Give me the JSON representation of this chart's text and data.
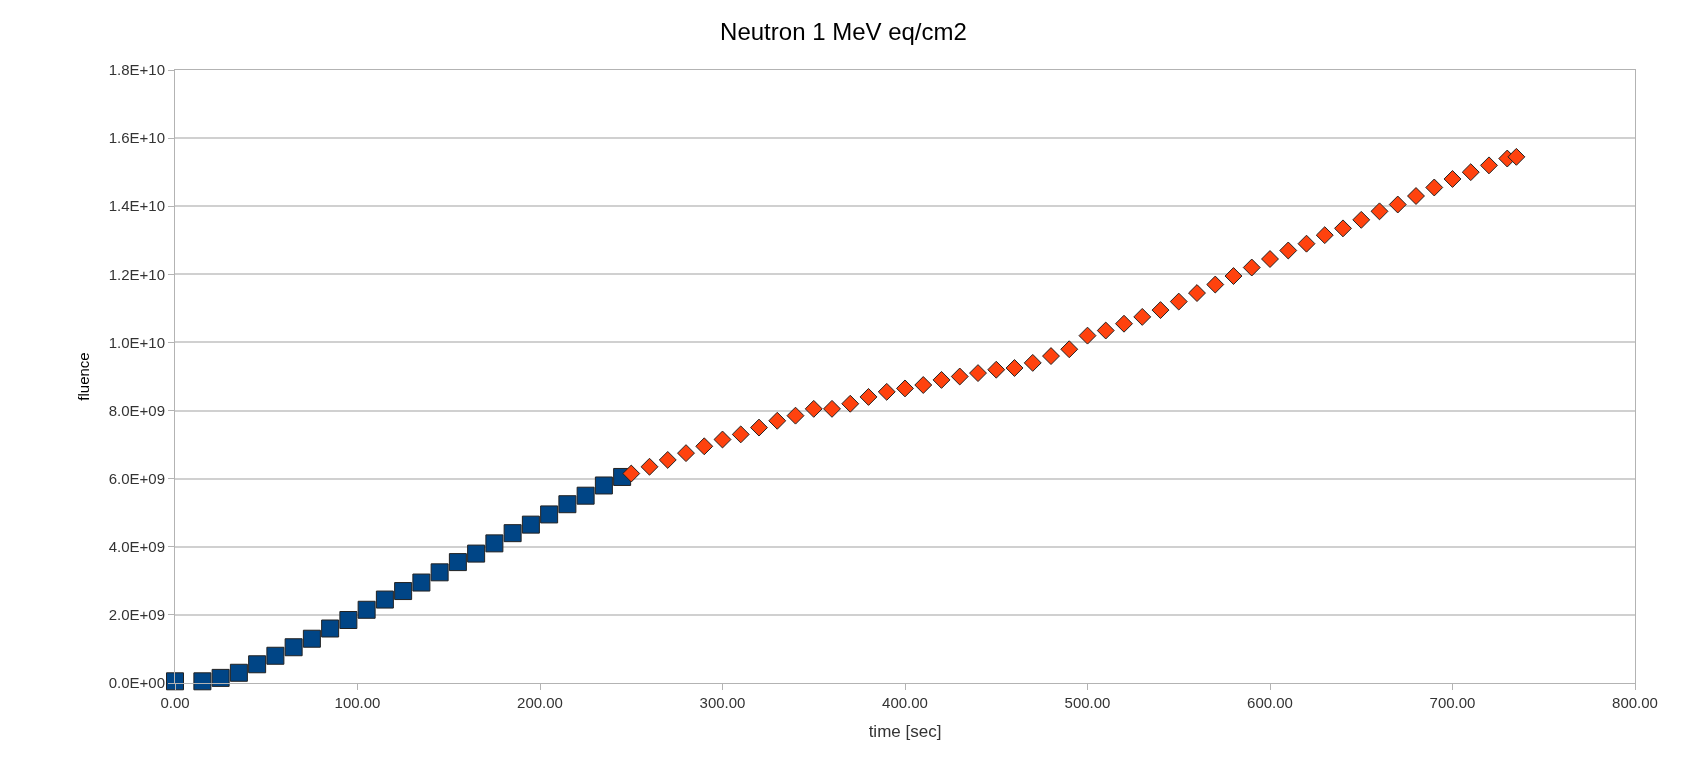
{
  "chart_data": {
    "type": "scatter",
    "title": "Neutron 1 MeV eq/cm2",
    "xlabel": "time [sec]",
    "ylabel": "fluence",
    "xlim": [
      0,
      800
    ],
    "xticks": [
      {
        "value": 0,
        "label": "0.00"
      },
      {
        "value": 100,
        "label": "100.00"
      },
      {
        "value": 200,
        "label": "200.00"
      },
      {
        "value": 300,
        "label": "300.00"
      },
      {
        "value": 400,
        "label": "400.00"
      },
      {
        "value": 500,
        "label": "500.00"
      },
      {
        "value": 600,
        "label": "600.00"
      },
      {
        "value": 700,
        "label": "700.00"
      },
      {
        "value": 800,
        "label": "800.00"
      }
    ],
    "ylim": [
      0,
      18000000000
    ],
    "yticks": [
      {
        "value": 0,
        "label": "0.0E+00"
      },
      {
        "value": 2000000000,
        "label": "2.0E+09"
      },
      {
        "value": 4000000000,
        "label": "4.0E+09"
      },
      {
        "value": 6000000000,
        "label": "6.0E+09"
      },
      {
        "value": 8000000000,
        "label": "8.0E+09"
      },
      {
        "value": 10000000000,
        "label": "1.0E+10"
      },
      {
        "value": 12000000000,
        "label": "1.2E+10"
      },
      {
        "value": 14000000000,
        "label": "1.4E+10"
      },
      {
        "value": 16000000000,
        "label": "1.6E+10"
      },
      {
        "value": 18000000000,
        "label": "1.8E+10"
      }
    ],
    "grid": "y",
    "series": [
      {
        "color": "#004586",
        "marker": "square",
        "x": [
          0,
          15,
          25,
          35,
          45,
          55,
          65,
          75,
          85,
          95,
          105,
          115,
          125,
          135,
          145,
          155,
          165,
          175,
          185,
          195,
          205,
          215,
          225,
          235,
          245
        ],
        "values": [
          50000000,
          50000000,
          150000000,
          300000000,
          550000000,
          800000000,
          1050000000,
          1300000000,
          1600000000,
          1850000000,
          2150000000,
          2450000000,
          2700000000,
          2950000000,
          3250000000,
          3550000000,
          3800000000,
          4100000000,
          4400000000,
          4650000000,
          4950000000,
          5250000000,
          5500000000,
          5800000000,
          6050000000
        ]
      },
      {
        "color": "#ff420e",
        "marker": "diamond",
        "x": [
          250,
          260,
          270,
          280,
          290,
          300,
          310,
          320,
          330,
          340,
          350,
          360,
          370,
          380,
          390,
          400,
          410,
          420,
          430,
          440,
          450,
          460,
          470,
          480,
          490,
          500,
          510,
          520,
          530,
          540,
          550,
          560,
          570,
          580,
          590,
          600,
          610,
          620,
          630,
          640,
          650,
          660,
          670,
          680,
          690,
          700,
          710,
          720,
          730,
          735
        ],
        "values": [
          6150000000,
          6350000000,
          6550000000,
          6750000000,
          6950000000,
          7150000000,
          7300000000,
          7500000000,
          7700000000,
          7850000000,
          8050000000,
          8050000000,
          8200000000,
          8400000000,
          8550000000,
          8650000000,
          8750000000,
          8900000000,
          9000000000,
          9100000000,
          9200000000,
          9250000000,
          9400000000,
          9600000000,
          9800000000,
          10200000000,
          10350000000,
          10550000000,
          10750000000,
          10950000000,
          11200000000,
          11450000000,
          11700000000,
          11950000000,
          12200000000,
          12450000000,
          12700000000,
          12900000000,
          13150000000,
          13350000000,
          13600000000,
          13850000000,
          14050000000,
          14300000000,
          14550000000,
          14800000000,
          15000000000,
          15200000000,
          15400000000,
          15450000000
        ]
      }
    ]
  }
}
